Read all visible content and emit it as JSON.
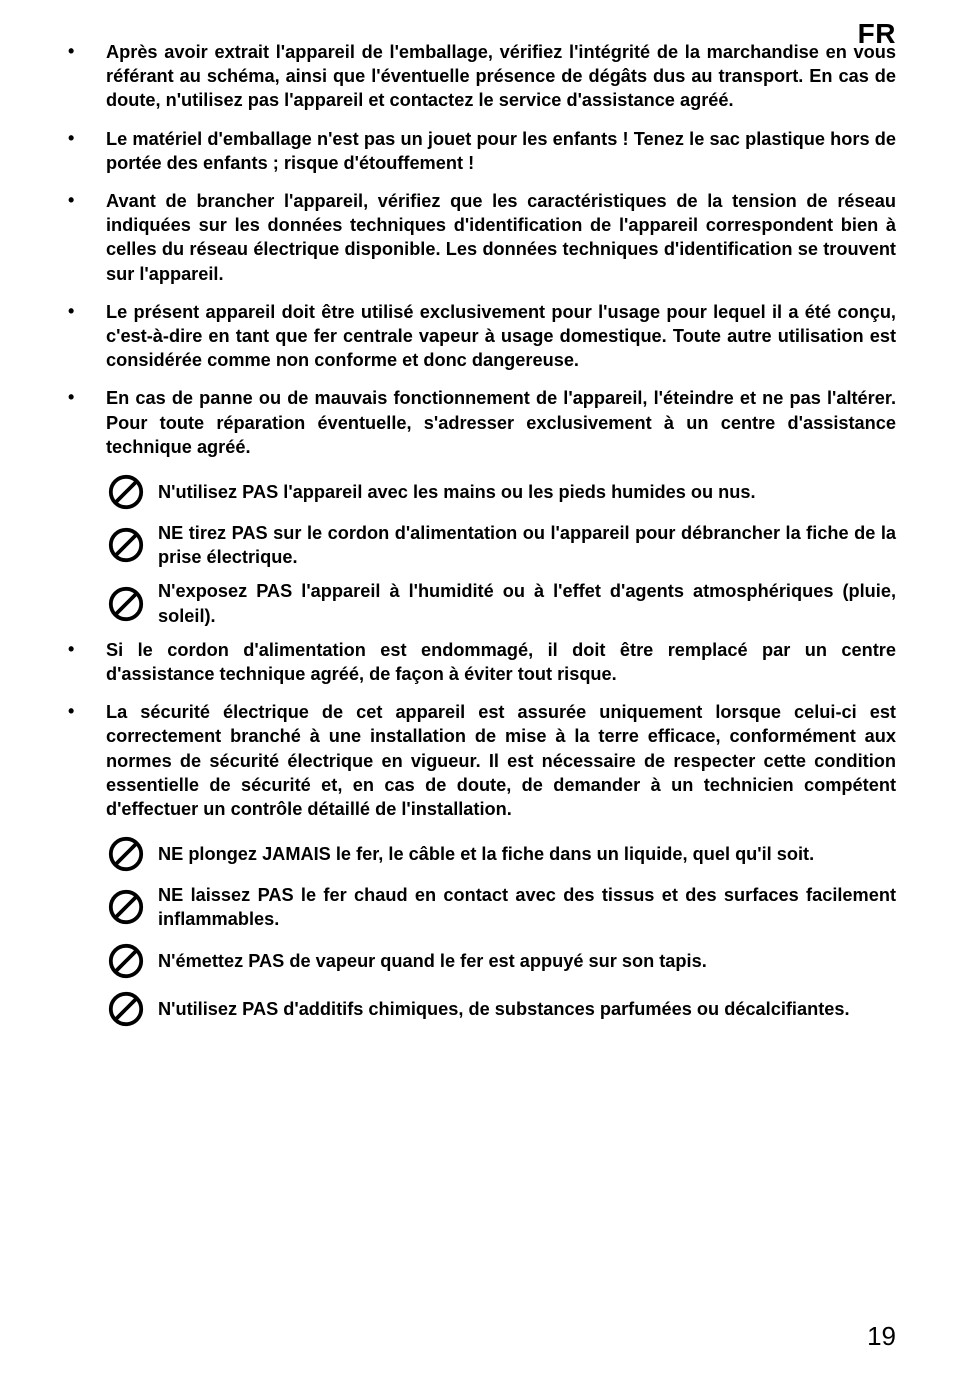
{
  "language_tag": "FR",
  "page_number": "19",
  "icon_stroke": "#000000",
  "bullets_top": [
    "Après avoir extrait l'appareil de l'emballage, vérifiez l'intégrité de la marchandise en vous référant au schéma, ainsi que l'éventuelle présence de dégâts dus au transport. En cas de doute, n'utilisez pas l'appareil et contactez le service d'assistance agréé.",
    "Le matériel d'emballage n'est pas un jouet pour les enfants ! Tenez le sac plastique hors de portée des enfants ; risque d'étouffement !",
    "Avant de brancher l'appareil, vérifiez que les caractéristiques de la tension de réseau indiquées sur les données techniques d'identification de l'appareil correspondent bien à celles du réseau électrique disponible. Les données techniques d'identification se trouvent sur l'appareil.",
    "Le présent appareil doit être utilisé exclusivement pour l'usage pour lequel il a été conçu, c'est-à-dire en tant que fer centrale vapeur à usage domestique. Toute autre utilisation est considérée comme non conforme et donc dangereuse.",
    "En cas de panne ou de mauvais fonctionnement de l'appareil, l'éteindre et ne pas l'altérer. Pour toute réparation éventuelle, s'adresser exclusivement à un centre d'assistance technique agréé."
  ],
  "prohibit_group_1": [
    "N'utilisez PAS l'appareil avec les mains ou les pieds humides ou nus.",
    "NE tirez PAS sur le cordon d'alimentation ou l'appareil pour débrancher la fiche de la prise électrique.",
    "N'exposez PAS l'appareil à l'humidité ou à l'effet d'agents atmosphériques (pluie, soleil)."
  ],
  "bullets_mid": [
    "Si le cordon d'alimentation est endommagé, il doit être remplacé par un centre d'assistance technique agréé, de façon à éviter tout risque.",
    "La sécurité électrique de cet appareil est assurée uniquement lorsque celui-ci est correctement branché à une installation de mise à la terre efficace, conformément aux normes de sécurité électrique en vigueur. Il est nécessaire de respecter cette condition essentielle de sécurité et, en cas de doute, de demander à un technicien compétent d'effectuer un contrôle détaillé de l'installation."
  ],
  "prohibit_group_2": [
    "NE plongez JAMAIS le fer, le câble et la fiche dans un liquide, quel qu'il soit.",
    "NE laissez PAS le fer chaud en contact avec des tissus et des surfaces facilement inflammables.",
    "N'émettez PAS de vapeur quand le fer est appuyé sur son tapis.",
    "N'utilisez PAS d'additifs chimiques, de substances parfumées ou décalcifiantes."
  ]
}
